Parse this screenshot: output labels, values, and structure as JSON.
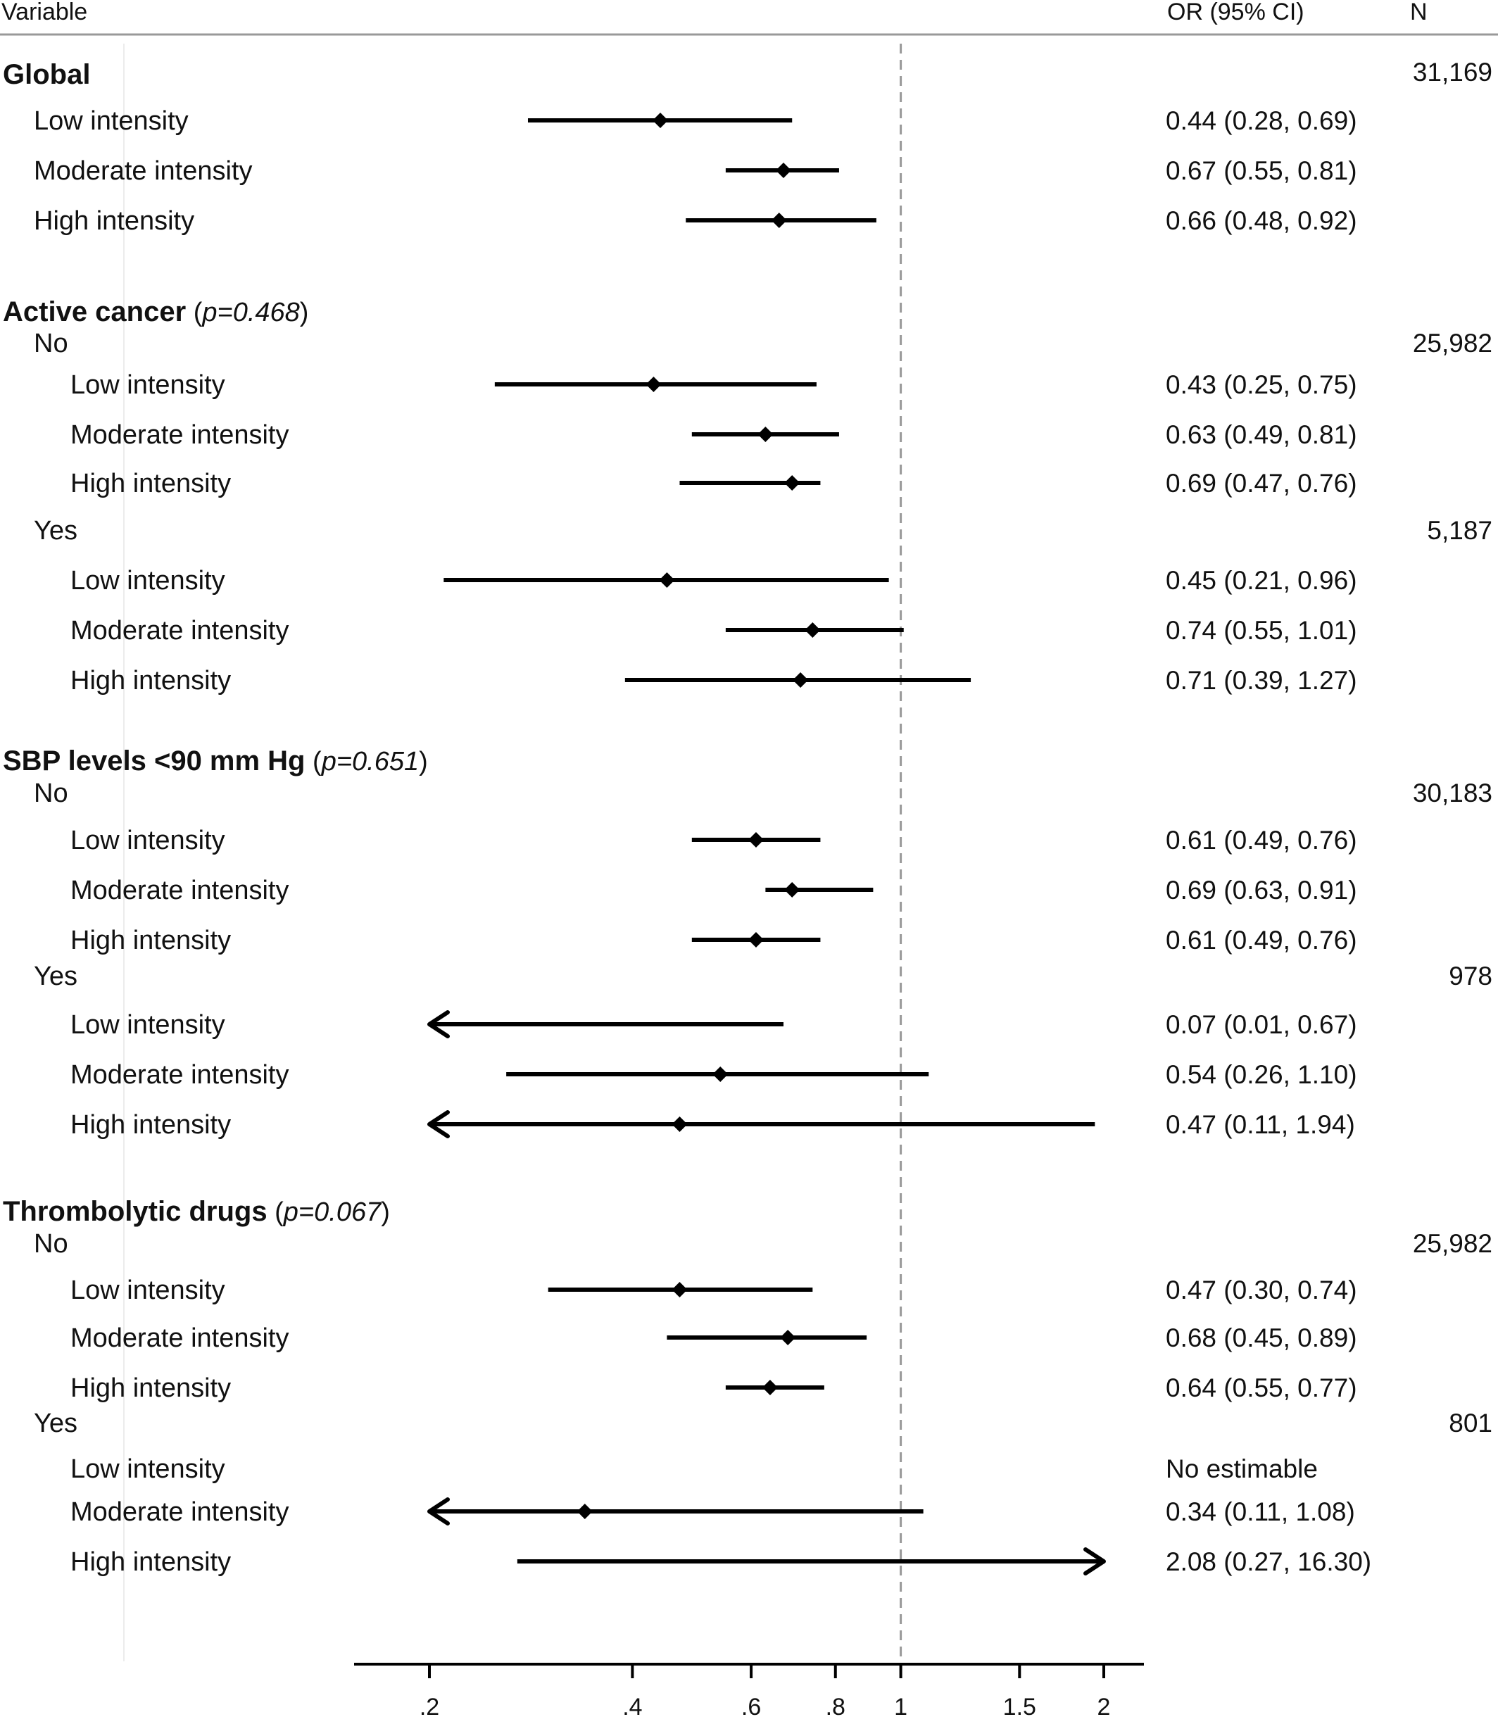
{
  "header": {
    "variable": "Variable",
    "or_ci": "OR (95% CI)",
    "n": "N"
  },
  "chart_data": {
    "type": "forest",
    "x_scale": "log",
    "xlim": [
      0.15,
      2.1
    ],
    "reference_line": 1,
    "ticks": [
      {
        "v": 0.2,
        "label": ".2"
      },
      {
        "v": 0.4,
        "label": ".4"
      },
      {
        "v": 0.6,
        "label": ".6"
      },
      {
        "v": 0.8,
        "label": ".8"
      },
      {
        "v": 1,
        "label": "1"
      },
      {
        "v": 1.5,
        "label": "1.5"
      },
      {
        "v": 2,
        "label": "2"
      }
    ],
    "rows": [
      {
        "kind": "group",
        "label": "Global",
        "pval": "",
        "n": "31,169"
      },
      {
        "kind": "item",
        "indent": 1,
        "label": "Low intensity",
        "or": 0.44,
        "lo": 0.28,
        "hi": 0.69,
        "text": "0.44 (0.28, 0.69)"
      },
      {
        "kind": "item",
        "indent": 1,
        "label": "Moderate intensity",
        "or": 0.67,
        "lo": 0.55,
        "hi": 0.81,
        "text": "0.67 (0.55, 0.81)"
      },
      {
        "kind": "item",
        "indent": 1,
        "label": "High intensity",
        "or": 0.66,
        "lo": 0.48,
        "hi": 0.92,
        "text": "0.66 (0.48, 0.92)"
      },
      {
        "kind": "gap"
      },
      {
        "kind": "group",
        "label": "Active cancer",
        "pval": "p=0.468",
        "n": ""
      },
      {
        "kind": "sub",
        "label": "No",
        "n": "25,982"
      },
      {
        "kind": "item",
        "indent": 2,
        "label": "Low intensity",
        "or": 0.43,
        "lo": 0.25,
        "hi": 0.75,
        "text": "0.43 (0.25, 0.75)"
      },
      {
        "kind": "item",
        "indent": 2,
        "label": "Moderate intensity",
        "or": 0.63,
        "lo": 0.49,
        "hi": 0.81,
        "text": "0.63 (0.49, 0.81)"
      },
      {
        "kind": "item",
        "indent": 2,
        "label": "High intensity",
        "or": 0.69,
        "lo": 0.47,
        "hi": 0.76,
        "text": "0.69 (0.47, 0.76)"
      },
      {
        "kind": "sub",
        "label": "Yes",
        "n": "5,187"
      },
      {
        "kind": "item",
        "indent": 2,
        "label": "Low intensity",
        "or": 0.45,
        "lo": 0.21,
        "hi": 0.96,
        "text": "0.45 (0.21, 0.96)"
      },
      {
        "kind": "item",
        "indent": 2,
        "label": "Moderate intensity",
        "or": 0.74,
        "lo": 0.55,
        "hi": 1.01,
        "text": "0.74 (0.55, 1.01)"
      },
      {
        "kind": "item",
        "indent": 2,
        "label": "High intensity",
        "or": 0.71,
        "lo": 0.39,
        "hi": 1.27,
        "text": "0.71 (0.39, 1.27)"
      },
      {
        "kind": "gap"
      },
      {
        "kind": "group",
        "label": "SBP levels <90 mm Hg",
        "pval": "p=0.651",
        "n": ""
      },
      {
        "kind": "sub",
        "label": "No",
        "n": "30,183"
      },
      {
        "kind": "item",
        "indent": 2,
        "label": "Low intensity",
        "or": 0.61,
        "lo": 0.49,
        "hi": 0.76,
        "text": "0.61 (0.49, 0.76)"
      },
      {
        "kind": "item",
        "indent": 2,
        "label": "Moderate intensity",
        "or": 0.69,
        "lo": 0.63,
        "hi": 0.91,
        "text": "0.69 (0.63, 0.91)"
      },
      {
        "kind": "item",
        "indent": 2,
        "label": "High intensity",
        "or": 0.61,
        "lo": 0.49,
        "hi": 0.76,
        "text": "0.61 (0.49, 0.76)"
      },
      {
        "kind": "sub",
        "label": "Yes",
        "n": "978"
      },
      {
        "kind": "item",
        "indent": 2,
        "label": "Low intensity",
        "or": 0.07,
        "lo": 0.01,
        "hi": 0.67,
        "text": "0.07 (0.01, 0.67)"
      },
      {
        "kind": "item",
        "indent": 2,
        "label": "Moderate intensity",
        "or": 0.54,
        "lo": 0.26,
        "hi": 1.1,
        "text": "0.54 (0.26, 1.10)"
      },
      {
        "kind": "item",
        "indent": 2,
        "label": "High intensity",
        "or": 0.47,
        "lo": 0.11,
        "hi": 1.94,
        "text": "0.47 (0.11, 1.94)"
      },
      {
        "kind": "gap"
      },
      {
        "kind": "group",
        "label": "Thrombolytic drugs",
        "pval": "p=0.067",
        "n": ""
      },
      {
        "kind": "sub",
        "label": "No",
        "n": "25,982"
      },
      {
        "kind": "item",
        "indent": 2,
        "label": "Low intensity",
        "or": 0.47,
        "lo": 0.3,
        "hi": 0.74,
        "text": "0.47 (0.30, 0.74)"
      },
      {
        "kind": "item",
        "indent": 2,
        "label": "Moderate intensity",
        "or": 0.68,
        "lo": 0.45,
        "hi": 0.89,
        "text": "0.68 (0.45, 0.89)"
      },
      {
        "kind": "item",
        "indent": 2,
        "label": "High intensity",
        "or": 0.64,
        "lo": 0.55,
        "hi": 0.77,
        "text": "0.64 (0.55, 0.77)"
      },
      {
        "kind": "sub",
        "label": "Yes",
        "n": "801"
      },
      {
        "kind": "item",
        "indent": 2,
        "label": "Low intensity",
        "or": null,
        "lo": null,
        "hi": null,
        "text": "No estimable"
      },
      {
        "kind": "item",
        "indent": 2,
        "label": "Moderate intensity",
        "or": 0.34,
        "lo": 0.11,
        "hi": 1.08,
        "text": "0.34 (0.11, 1.08)"
      },
      {
        "kind": "item",
        "indent": 2,
        "label": "High intensity",
        "or": 2.08,
        "lo": 0.27,
        "hi": 16.3,
        "text": "2.08 (0.27, 16.30)"
      }
    ]
  }
}
